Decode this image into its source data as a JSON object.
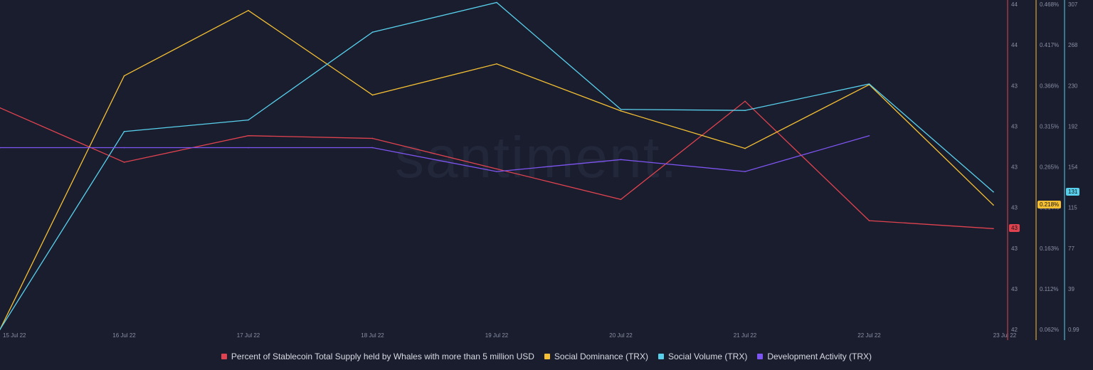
{
  "watermark": "santiment.",
  "chart_data": {
    "type": "line",
    "x": [
      "15 Jul 22",
      "16 Jul 22",
      "17 Jul 22",
      "18 Jul 22",
      "19 Jul 22",
      "20 Jul 22",
      "21 Jul 22",
      "22 Jul 22",
      "23 Jul 22"
    ],
    "series": [
      {
        "name": "Percent of Stablecoin Total Supply held by Whales with more than 5 million USD",
        "axis": "red",
        "color": "#e0434f",
        "values": [
          43.67,
          43.26,
          43.46,
          43.44,
          43.21,
          42.98,
          43.72,
          42.82,
          42.76
        ]
      },
      {
        "name": "Social Dominance (TRX)",
        "axis": "yellow",
        "color": "#f5c033",
        "values": [
          0.062,
          0.38,
          0.462,
          0.356,
          0.395,
          0.336,
          0.289,
          0.369,
          0.218
        ]
      },
      {
        "name": "Social Volume (TRX)",
        "axis": "cyan",
        "color": "#58d0ec",
        "values": [
          0.99,
          188,
          199,
          282,
          310,
          209,
          208,
          233,
          131
        ]
      },
      {
        "name": "Development Activity (TRX)",
        "axis": "red",
        "color": "#7d55f0",
        "values": [
          43.37,
          43.37,
          43.37,
          43.37,
          43.19,
          43.28,
          43.19,
          43.46,
          null
        ]
      }
    ],
    "axes": {
      "red": {
        "ticks": [
          "44",
          "44",
          "43",
          "43",
          "43",
          "43",
          "43",
          "43",
          "42"
        ],
        "min": 42.0,
        "max": 44.44,
        "current": "43",
        "current_value": 42.76,
        "color": "#e0434f"
      },
      "yellow": {
        "ticks": [
          "0.468%",
          "0.417%",
          "0.366%",
          "0.315%",
          "0.265%",
          "0.214%",
          "0.163%",
          "0.112%",
          "0.062%"
        ],
        "min": 0.062,
        "max": 0.468,
        "current": "0.218%",
        "current_value": 0.218,
        "color": "#f5c033"
      },
      "cyan": {
        "ticks": [
          "307",
          "268",
          "230",
          "192",
          "154",
          "115",
          "77",
          "39",
          "0.99"
        ],
        "min": 0.99,
        "max": 307,
        "current": "131",
        "current_value": 131,
        "color": "#58d0ec"
      }
    },
    "legend_position": "bottom",
    "grid": false
  },
  "legend": [
    {
      "label": "Percent of Stablecoin Total Supply held by Whales with more than 5 million USD",
      "color": "#e0434f"
    },
    {
      "label": "Social Dominance (TRX)",
      "color": "#f5c033"
    },
    {
      "label": "Social Volume (TRX)",
      "color": "#58d0ec"
    },
    {
      "label": "Development Activity (TRX)",
      "color": "#7d55f0"
    }
  ]
}
